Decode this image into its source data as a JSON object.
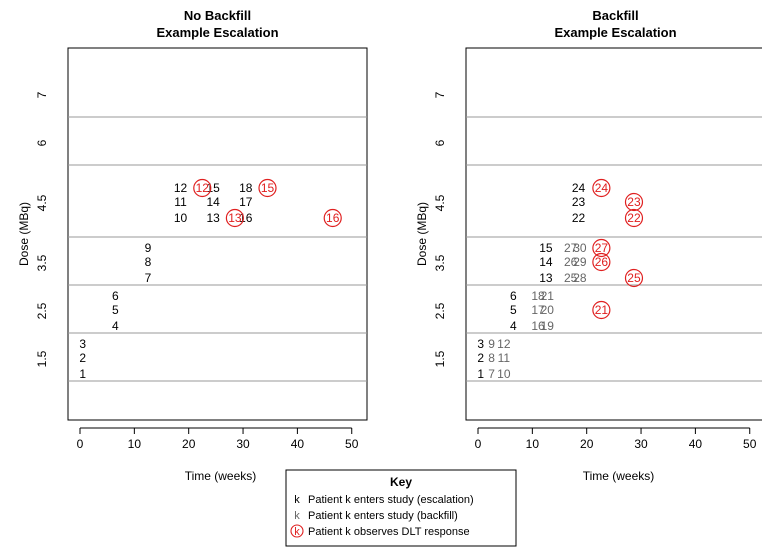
{
  "chart_data": [
    {
      "type": "scatter",
      "title": "No Backfill",
      "subtitle": "Example Escalation",
      "xlabel": "Time (weeks)",
      "ylabel": "Dose (MBq)",
      "xlim": [
        -2,
        52
      ],
      "xticks": [
        0,
        10,
        20,
        30,
        40,
        50
      ],
      "dose_levels": [
        "1.5",
        "2.5",
        "3.5",
        "4.5",
        "6",
        "7"
      ],
      "grid": "horizontal separators between dose levels",
      "escalation": [
        {
          "patient": "1",
          "time": 0.5,
          "dose_level": 0,
          "slot": 0
        },
        {
          "patient": "2",
          "time": 0.5,
          "dose_level": 0,
          "slot": 1
        },
        {
          "patient": "3",
          "time": 0.5,
          "dose_level": 0,
          "slot": 2
        },
        {
          "patient": "4",
          "time": 6.5,
          "dose_level": 1,
          "slot": 0
        },
        {
          "patient": "5",
          "time": 6.5,
          "dose_level": 1,
          "slot": 1
        },
        {
          "patient": "6",
          "time": 6.5,
          "dose_level": 1,
          "slot": 2
        },
        {
          "patient": "7",
          "time": 12.5,
          "dose_level": 2,
          "slot": 0
        },
        {
          "patient": "8",
          "time": 12.5,
          "dose_level": 2,
          "slot": 1
        },
        {
          "patient": "9",
          "time": 12.5,
          "dose_level": 2,
          "slot": 2
        },
        {
          "patient": "10",
          "time": 18.5,
          "dose_level": 3,
          "slot": 0
        },
        {
          "patient": "11",
          "time": 18.5,
          "dose_level": 3,
          "slot": 1
        },
        {
          "patient": "12",
          "time": 18.5,
          "dose_level": 3,
          "slot": 2
        },
        {
          "patient": "13",
          "time": 24.5,
          "dose_level": 3,
          "slot": 0
        },
        {
          "patient": "14",
          "time": 24.5,
          "dose_level": 3,
          "slot": 1
        },
        {
          "patient": "15",
          "time": 24.5,
          "dose_level": 3,
          "slot": 2
        },
        {
          "patient": "16",
          "time": 30.5,
          "dose_level": 3,
          "slot": 0
        },
        {
          "patient": "17",
          "time": 30.5,
          "dose_level": 3,
          "slot": 1
        },
        {
          "patient": "18",
          "time": 30.5,
          "dose_level": 3,
          "slot": 2
        }
      ],
      "backfill": [],
      "dlt": [
        {
          "patient": "12",
          "time": 22.5,
          "dose_level": 3,
          "slot": 2
        },
        {
          "patient": "13",
          "time": 28.5,
          "dose_level": 3,
          "slot": 0
        },
        {
          "patient": "15",
          "time": 34.5,
          "dose_level": 3,
          "slot": 2
        },
        {
          "patient": "16",
          "time": 46.5,
          "dose_level": 3,
          "slot": 0
        }
      ]
    },
    {
      "type": "scatter",
      "title": "Backfill",
      "subtitle": "Example Escalation",
      "xlabel": "Time (weeks)",
      "ylabel": "Dose (MBq)",
      "xlim": [
        -2,
        52
      ],
      "xticks": [
        0,
        10,
        20,
        30,
        40,
        50
      ],
      "dose_levels": [
        "1.5",
        "2.5",
        "3.5",
        "4.5",
        "6",
        "7"
      ],
      "grid": "horizontal separators between dose levels",
      "escalation": [
        {
          "patient": "1",
          "time": 0.5,
          "dose_level": 0,
          "slot": 0
        },
        {
          "patient": "2",
          "time": 0.5,
          "dose_level": 0,
          "slot": 1
        },
        {
          "patient": "3",
          "time": 0.5,
          "dose_level": 0,
          "slot": 2
        },
        {
          "patient": "4",
          "time": 6.5,
          "dose_level": 1,
          "slot": 0
        },
        {
          "patient": "5",
          "time": 6.5,
          "dose_level": 1,
          "slot": 1
        },
        {
          "patient": "6",
          "time": 6.5,
          "dose_level": 1,
          "slot": 2
        },
        {
          "patient": "13",
          "time": 12.5,
          "dose_level": 2,
          "slot": 0
        },
        {
          "patient": "14",
          "time": 12.5,
          "dose_level": 2,
          "slot": 1
        },
        {
          "patient": "15",
          "time": 12.5,
          "dose_level": 2,
          "slot": 2
        },
        {
          "patient": "22",
          "time": 18.5,
          "dose_level": 3,
          "slot": 0
        },
        {
          "patient": "23",
          "time": 18.5,
          "dose_level": 3,
          "slot": 1
        },
        {
          "patient": "24",
          "time": 18.5,
          "dose_level": 3,
          "slot": 2
        }
      ],
      "backfill": [
        {
          "patient": "7",
          "time": 2.5,
          "dose_level": 0,
          "slot": 0
        },
        {
          "patient": "8",
          "time": 2.5,
          "dose_level": 0,
          "slot": 1
        },
        {
          "patient": "9",
          "time": 2.5,
          "dose_level": 0,
          "slot": 2
        },
        {
          "patient": "10",
          "time": 4.2,
          "dose_level": 0,
          "slot": 0
        },
        {
          "patient": "11",
          "time": 4.2,
          "dose_level": 0,
          "slot": 1
        },
        {
          "patient": "12",
          "time": 4.2,
          "dose_level": 0,
          "slot": 2
        },
        {
          "patient": "16",
          "time": 10.5,
          "dose_level": 1,
          "slot": 0
        },
        {
          "patient": "17",
          "time": 10.5,
          "dose_level": 1,
          "slot": 1
        },
        {
          "patient": "18",
          "time": 10.5,
          "dose_level": 1,
          "slot": 2
        },
        {
          "patient": "19",
          "time": 12.2,
          "dose_level": 1,
          "slot": 0
        },
        {
          "patient": "20",
          "time": 12.2,
          "dose_level": 1,
          "slot": 1
        },
        {
          "patient": "21",
          "time": 12.2,
          "dose_level": 1,
          "slot": 2
        },
        {
          "patient": "25",
          "time": 16.5,
          "dose_level": 2,
          "slot": 0
        },
        {
          "patient": "26",
          "time": 16.5,
          "dose_level": 2,
          "slot": 1
        },
        {
          "patient": "27",
          "time": 16.5,
          "dose_level": 2,
          "slot": 2
        },
        {
          "patient": "28",
          "time": 18.2,
          "dose_level": 2,
          "slot": 0
        },
        {
          "patient": "29",
          "time": 18.2,
          "dose_level": 2,
          "slot": 1
        },
        {
          "patient": "30",
          "time": 18.2,
          "dose_level": 2,
          "slot": 2
        }
      ],
      "dlt": [
        {
          "patient": "21",
          "time": 22.7,
          "dose_level": 1,
          "slot": 1
        },
        {
          "patient": "24",
          "time": 22.7,
          "dose_level": 3,
          "slot": 2
        },
        {
          "patient": "25",
          "time": 28.7,
          "dose_level": 2,
          "slot": 0
        },
        {
          "patient": "22",
          "time": 28.7,
          "dose_level": 3,
          "slot": 0
        },
        {
          "patient": "23",
          "time": 28.7,
          "dose_level": 3,
          "slot": 1
        },
        {
          "patient": "26",
          "time": 22.7,
          "dose_level": 2,
          "slot": 1
        },
        {
          "patient": "27",
          "time": 22.7,
          "dose_level": 2,
          "slot": 2
        }
      ]
    }
  ],
  "legend": {
    "title": "Key",
    "symbol_text": "k",
    "items": [
      {
        "text": "Patient k enters study (escalation)",
        "style": "escalation"
      },
      {
        "text": "Patient k enters study (backfill)",
        "style": "backfill"
      },
      {
        "text": "Patient k observes DLT response",
        "style": "dlt"
      }
    ]
  },
  "colors": {
    "escalation": "#000000",
    "backfill": "#666666",
    "dlt": "#e02020",
    "separator": "#999999",
    "axis": "#000000"
  }
}
